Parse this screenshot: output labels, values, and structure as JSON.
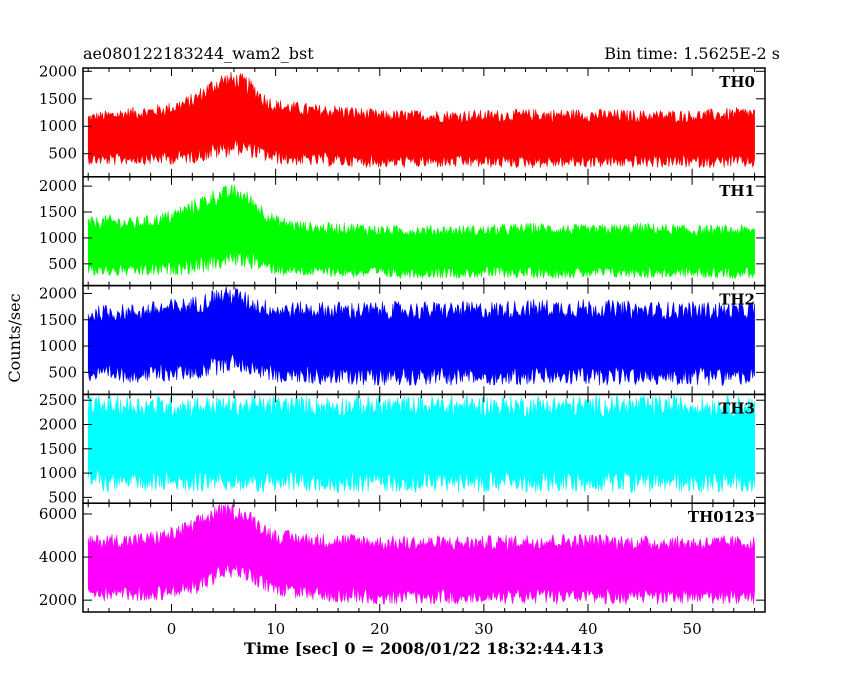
{
  "header": {
    "source_id": "ae080122183244_wam2_bst",
    "bin_time": "Bin time: 1.5625E-2 s"
  },
  "chart_data": {
    "type": "line",
    "xlabel": "Time [sec] 0 = 2008/01/22 18:32:44.413",
    "ylabel": "Counts/sec",
    "xlim": [
      -8.5,
      57
    ],
    "xticks": [
      0,
      10,
      20,
      30,
      40,
      50
    ],
    "x_minor_step": 2,
    "panels": [
      {
        "name": "TH0",
        "color": "#ff0000",
        "ylim": [
          80,
          2060
        ],
        "yticks": [
          500,
          1000,
          1500,
          2000
        ],
        "x": [
          -8,
          -6,
          -4,
          -2,
          0,
          2,
          3,
          4,
          5,
          6,
          7,
          8,
          9,
          10,
          12,
          14,
          16,
          18,
          20,
          25,
          30,
          35,
          40,
          45,
          50,
          55,
          56
        ],
        "low": [
          300,
          280,
          300,
          300,
          300,
          320,
          350,
          380,
          420,
          470,
          450,
          400,
          350,
          300,
          280,
          270,
          260,
          250,
          240,
          240,
          240,
          240,
          240,
          240,
          240,
          240,
          240
        ],
        "high": [
          1250,
          1300,
          1350,
          1380,
          1450,
          1600,
          1750,
          1900,
          2000,
          2000,
          1950,
          1800,
          1600,
          1500,
          1450,
          1400,
          1400,
          1350,
          1300,
          1300,
          1300,
          1320,
          1320,
          1300,
          1300,
          1350,
          1350
        ]
      },
      {
        "name": "TH1",
        "color": "#00ff00",
        "ylim": [
          80,
          2180
        ],
        "yticks": [
          500,
          1000,
          1500,
          2000
        ],
        "x": [
          -8,
          -6,
          -4,
          -2,
          0,
          2,
          3,
          4,
          5,
          6,
          7,
          8,
          9,
          10,
          12,
          14,
          16,
          18,
          20,
          25,
          30,
          35,
          40,
          45,
          50,
          55,
          56
        ],
        "low": [
          250,
          250,
          250,
          250,
          270,
          300,
          320,
          350,
          400,
          450,
          420,
          380,
          330,
          280,
          260,
          250,
          240,
          230,
          220,
          220,
          220,
          220,
          220,
          220,
          220,
          220,
          220
        ],
        "high": [
          1400,
          1450,
          1400,
          1450,
          1550,
          1750,
          1850,
          1950,
          2000,
          2050,
          1950,
          1800,
          1600,
          1450,
          1350,
          1300,
          1300,
          1300,
          1250,
          1250,
          1250,
          1300,
          1250,
          1300,
          1250,
          1250,
          1250
        ]
      },
      {
        "name": "TH2",
        "color": "#0000ff",
        "ylim": [
          80,
          2150
        ],
        "yticks": [
          500,
          1000,
          1500,
          2000
        ],
        "x": [
          -8,
          -6,
          -4,
          -2,
          0,
          2,
          3,
          4,
          5,
          6,
          7,
          8,
          9,
          10,
          12,
          14,
          16,
          18,
          20,
          25,
          30,
          35,
          40,
          45,
          50,
          55,
          56
        ],
        "low": [
          300,
          300,
          300,
          300,
          320,
          350,
          380,
          420,
          480,
          520,
          480,
          420,
          350,
          300,
          280,
          270,
          260,
          250,
          250,
          250,
          250,
          250,
          250,
          250,
          250,
          250,
          250
        ],
        "high": [
          1750,
          1800,
          1800,
          1850,
          1900,
          1950,
          2000,
          2100,
          2150,
          2150,
          2050,
          1950,
          1900,
          1850,
          1850,
          1850,
          1850,
          1850,
          1850,
          1850,
          1850,
          1900,
          1900,
          1850,
          1850,
          1850,
          1850
        ]
      },
      {
        "name": "TH3",
        "color": "#00ffff",
        "ylim": [
          380,
          2620
        ],
        "yticks": [
          500,
          1000,
          1500,
          2000,
          2500
        ],
        "x": [
          -8,
          -6,
          -4,
          -2,
          0,
          2,
          4,
          6,
          8,
          10,
          15,
          20,
          25,
          30,
          35,
          40,
          45,
          50,
          55,
          56
        ],
        "low": [
          650,
          600,
          600,
          600,
          620,
          600,
          620,
          620,
          600,
          600,
          600,
          600,
          600,
          600,
          600,
          600,
          600,
          600,
          600,
          600
        ],
        "high": [
          2600,
          2600,
          2600,
          2600,
          2600,
          2600,
          2600,
          2600,
          2600,
          2600,
          2600,
          2600,
          2600,
          2600,
          2600,
          2600,
          2600,
          2600,
          2600,
          2600
        ]
      },
      {
        "name": "TH0123",
        "color": "#ff00ff",
        "ylim": [
          1450,
          6500
        ],
        "yticks": [
          2000,
          4000,
          6000
        ],
        "x": [
          -8,
          -6,
          -4,
          -2,
          0,
          2,
          3,
          4,
          5,
          6,
          7,
          8,
          9,
          10,
          12,
          14,
          16,
          18,
          20,
          25,
          30,
          35,
          40,
          45,
          50,
          55,
          56
        ],
        "low": [
          2000,
          1950,
          1950,
          1950,
          2050,
          2200,
          2400,
          2700,
          2900,
          3000,
          2900,
          2700,
          2400,
          2200,
          2050,
          1950,
          1900,
          1850,
          1800,
          1800,
          1800,
          1800,
          1800,
          1800,
          1800,
          1800,
          1800
        ],
        "high": [
          5000,
          5100,
          5100,
          5200,
          5400,
          5800,
          6100,
          6400,
          6500,
          6500,
          6300,
          6000,
          5600,
          5300,
          5200,
          5100,
          5100,
          5100,
          5000,
          5000,
          5000,
          5100,
          5100,
          5000,
          5000,
          5000,
          5000
        ]
      }
    ]
  }
}
